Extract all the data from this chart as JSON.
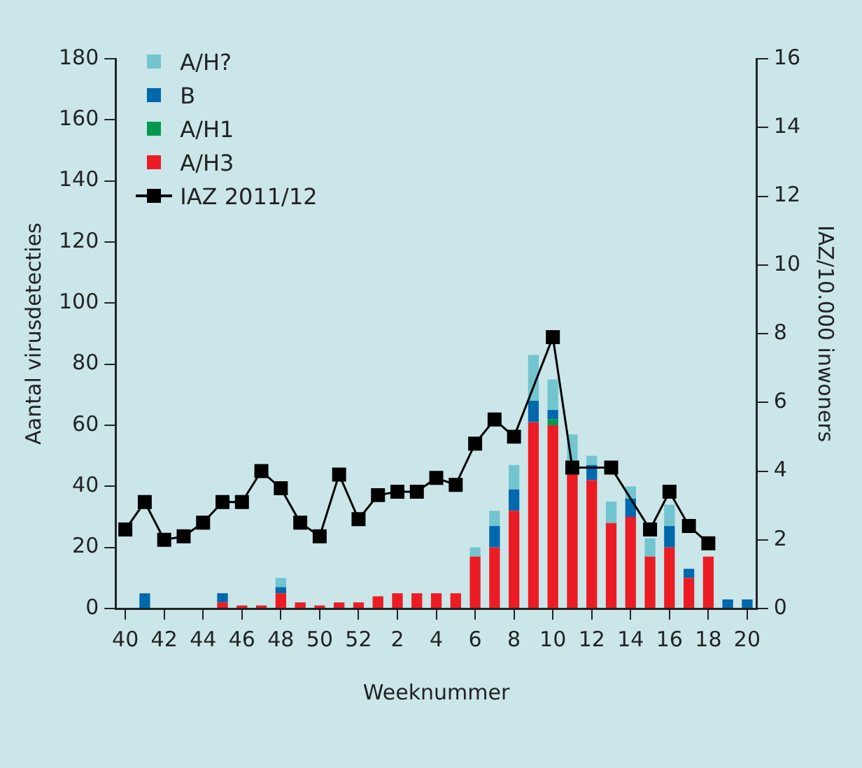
{
  "chart_data": {
    "type": "bar",
    "stacked": true,
    "xlabel": "Weeknummer",
    "ylabel": "Aantal virusdetecties",
    "y2label": "IAZ/10.000 inwoners",
    "categories": [
      "40",
      null,
      "42",
      null,
      "44",
      null,
      "46",
      null,
      "48",
      null,
      "50",
      null,
      "52",
      null,
      "2",
      null,
      "4",
      null,
      "6",
      null,
      "8",
      null,
      "10",
      null,
      "12",
      null,
      "14",
      null,
      "16",
      null,
      "18",
      null,
      "20"
    ],
    "ylim": [
      0,
      180
    ],
    "yticks": [
      0,
      20,
      40,
      60,
      80,
      100,
      120,
      140,
      160,
      180
    ],
    "y2lim": [
      0,
      16
    ],
    "y2ticks": [
      0,
      2,
      4,
      6,
      8,
      10,
      12,
      14,
      16
    ],
    "legend": "top left",
    "marker": "square",
    "series": [
      {
        "name": "A/H3",
        "color": "#ec1c24",
        "values": [
          0,
          0,
          0,
          0,
          0,
          2,
          1,
          1,
          5,
          2,
          1,
          2,
          2,
          4,
          5,
          5,
          5,
          5,
          17,
          20,
          32,
          61,
          60,
          44,
          42,
          28,
          30,
          17,
          20,
          10,
          17,
          0,
          0
        ]
      },
      {
        "name": "A/H1",
        "color": "#009a4e",
        "values": [
          0,
          0,
          0,
          0,
          0,
          0,
          0,
          0,
          0,
          0,
          0,
          0,
          0,
          0,
          0,
          0,
          0,
          0,
          0,
          0,
          0,
          0,
          2,
          0,
          0,
          0,
          0,
          0,
          0,
          0,
          0,
          0,
          0
        ]
      },
      {
        "name": "B",
        "color": "#0068ad",
        "values": [
          0,
          5,
          0,
          0,
          0,
          3,
          0,
          0,
          2,
          0,
          0,
          0,
          0,
          0,
          0,
          0,
          0,
          0,
          0,
          7,
          7,
          7,
          3,
          0,
          5,
          0,
          6,
          0,
          7,
          3,
          0,
          3,
          3
        ]
      },
      {
        "name": "A/H?",
        "color": "#72c5cf",
        "values": [
          0,
          0,
          0,
          0,
          0,
          0,
          0,
          0,
          3,
          0,
          0,
          0,
          0,
          0,
          0,
          0,
          0,
          0,
          3,
          5,
          8,
          15,
          10,
          13,
          3,
          7,
          4,
          6,
          7,
          0,
          0,
          0,
          0
        ]
      },
      {
        "name": "IAZ 2011/12",
        "type": "line",
        "axis": "y2",
        "color": "#000000",
        "values": [
          2.3,
          3.1,
          2.0,
          2.1,
          2.5,
          3.1,
          3.1,
          4.0,
          3.5,
          2.5,
          2.1,
          3.9,
          2.6,
          3.3,
          3.4,
          3.4,
          3.8,
          3.6,
          4.8,
          5.5,
          5.0,
          null,
          7.9,
          4.1,
          null,
          4.1,
          null,
          2.3,
          3.4,
          2.4,
          1.9,
          null,
          null
        ]
      }
    ]
  }
}
